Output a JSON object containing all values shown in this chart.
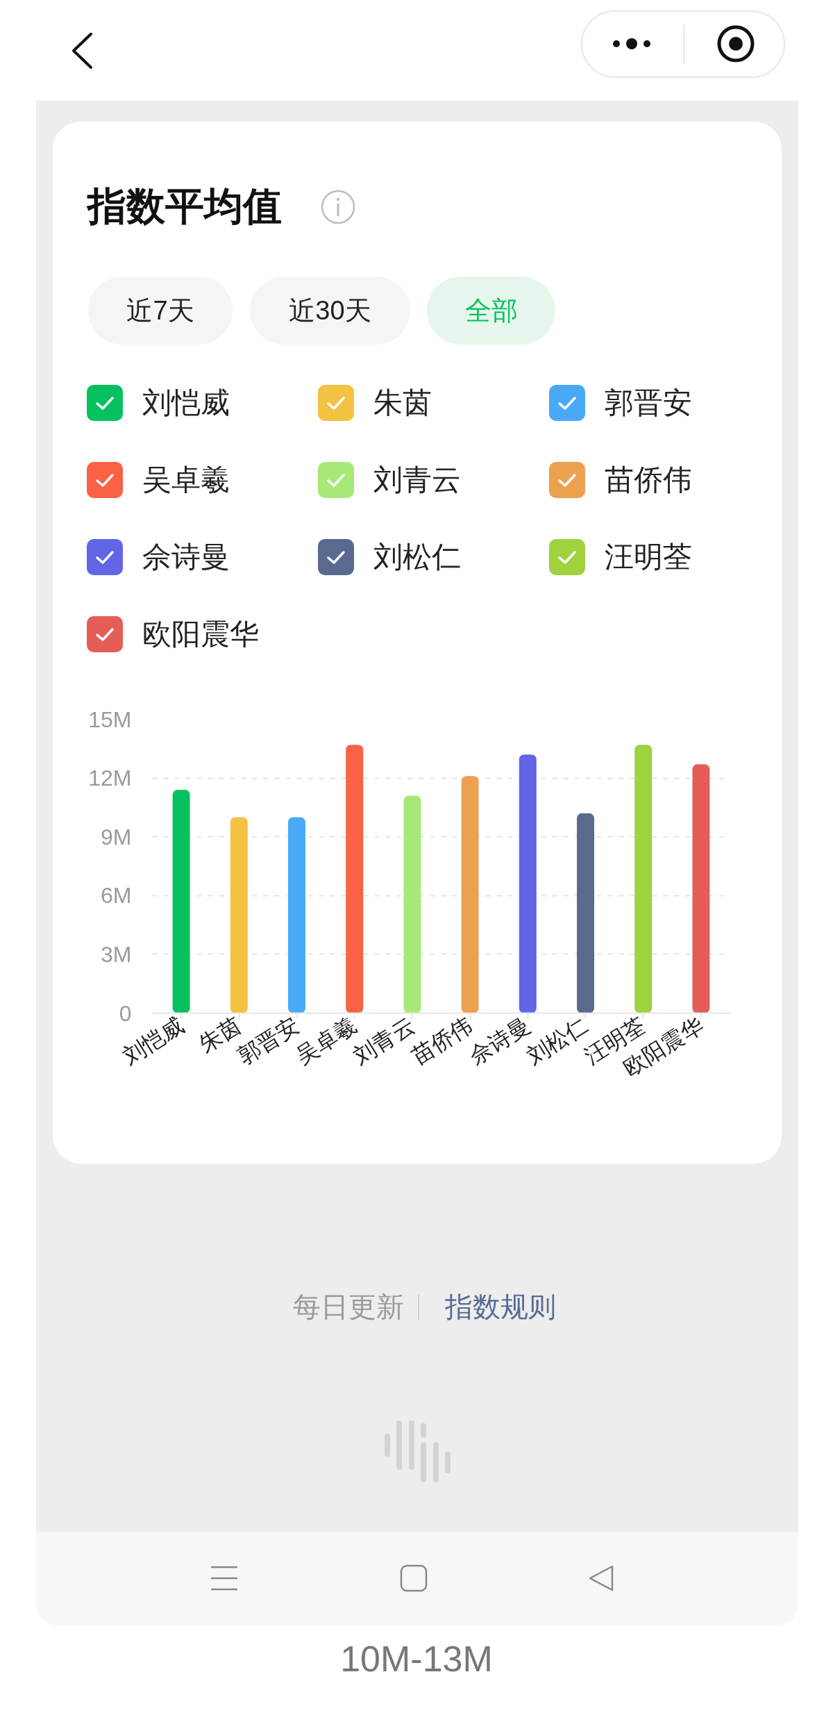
{
  "chart_data": {
    "type": "bar",
    "title": "指数平均值",
    "categories": [
      "刘恺威",
      "朱茵",
      "郭晋安",
      "吴卓羲",
      "刘青云",
      "苗侨伟",
      "佘诗曼",
      "刘松仁",
      "汪明荃",
      "欧阳震华"
    ],
    "series": [
      {
        "name": "刘恺威",
        "color": "#07c160",
        "values": [
          11.4,
          null,
          null,
          null,
          null,
          null,
          null,
          null,
          null,
          null
        ]
      },
      {
        "name": "朱茵",
        "color": "#f4c242",
        "values": [
          null,
          10.0,
          null,
          null,
          null,
          null,
          null,
          null,
          null,
          null
        ]
      },
      {
        "name": "郭晋安",
        "color": "#4aa9f6",
        "values": [
          null,
          null,
          10.0,
          null,
          null,
          null,
          null,
          null,
          null,
          null
        ]
      },
      {
        "name": "吴卓羲",
        "color": "#fa6145",
        "values": [
          null,
          null,
          null,
          13.7,
          null,
          null,
          null,
          null,
          null,
          null
        ]
      },
      {
        "name": "刘青云",
        "color": "#a6e977",
        "values": [
          null,
          null,
          null,
          null,
          11.1,
          null,
          null,
          null,
          null,
          null
        ]
      },
      {
        "name": "苗侨伟",
        "color": "#eca151",
        "values": [
          null,
          null,
          null,
          null,
          null,
          12.1,
          null,
          null,
          null,
          null
        ]
      },
      {
        "name": "佘诗曼",
        "color": "#6165e6",
        "values": [
          null,
          null,
          null,
          null,
          null,
          null,
          13.2,
          null,
          null,
          null
        ]
      },
      {
        "name": "刘松仁",
        "color": "#59698f",
        "values": [
          null,
          null,
          null,
          null,
          null,
          null,
          null,
          10.2,
          null,
          null
        ]
      },
      {
        "name": "汪明荃",
        "color": "#9ed23e",
        "values": [
          null,
          null,
          null,
          null,
          null,
          null,
          null,
          null,
          13.7,
          null
        ]
      },
      {
        "name": "欧阳震华",
        "color": "#e45d57",
        "values": [
          null,
          null,
          null,
          null,
          null,
          null,
          null,
          null,
          null,
          12.7
        ]
      }
    ],
    "ylim": [
      0,
      15
    ],
    "yticks": [
      0,
      {
        "value": 3,
        "label": "3M"
      },
      {
        "value": 6,
        "label": "6M"
      },
      {
        "value": 9,
        "label": "9M"
      },
      {
        "value": 12,
        "label": "12M"
      },
      {
        "value": 15,
        "label": "15M"
      }
    ],
    "grid": "y",
    "legend": "top",
    "annotations": [
      "近7天",
      "近30天",
      "全部",
      "每日更新",
      "指数规则",
      "10M-13M"
    ]
  }
}
